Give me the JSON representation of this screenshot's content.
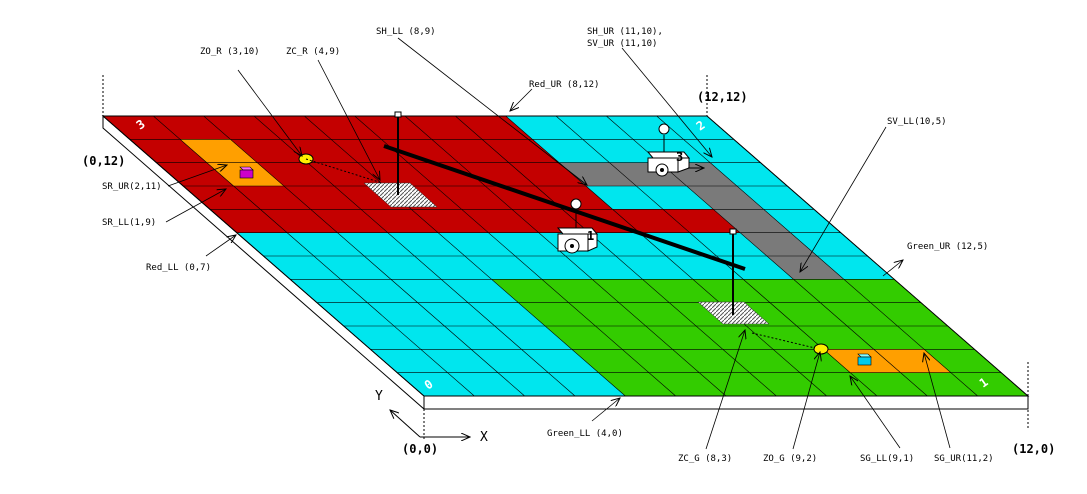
{
  "grid": {
    "cols": 12,
    "rows": 12
  },
  "colors": {
    "red": "#c40000",
    "cyan": "#00e6ee",
    "green": "#33cc00",
    "orange": "#ff9f00",
    "gray": "#7a7a7a",
    "pole": "#000000"
  },
  "zones": [
    {
      "name": "red-zone",
      "color": "red",
      "x0": 0,
      "y0": 7,
      "x1": 8,
      "y1": 12
    },
    {
      "name": "red-zone-tail",
      "color": "red",
      "x0": 8,
      "y0": 7,
      "x1": 11,
      "y1": 8
    },
    {
      "name": "green-zone",
      "color": "green",
      "x0": 4,
      "y0": 0,
      "x1": 12,
      "y1": 5
    },
    {
      "name": "sv-strip",
      "color": "gray",
      "x0": 10,
      "y0": 5,
      "x1": 11,
      "y1": 10
    },
    {
      "name": "sh-strip",
      "color": "gray",
      "x0": 8,
      "y0": 9,
      "x1": 11,
      "y1": 10
    },
    {
      "name": "sr-region",
      "color": "orange",
      "x0": 1,
      "y0": 9,
      "x1": 2,
      "y1": 11
    },
    {
      "name": "sg-region",
      "color": "orange",
      "x0": 9,
      "y0": 1,
      "x1": 11,
      "y1": 2
    }
  ],
  "labels": {
    "origin": "(0,0)",
    "x_axis": "X",
    "y_axis": "Y",
    "corner_0_12": "(0,12)",
    "corner_12_12": "(12,12)",
    "corner_12_0": "(12,0)",
    "zo_r": "ZO_R (3,10)",
    "zc_r": "ZC_R (4,9)",
    "sh_ll": "SH_LL (8,9)",
    "sh_ur": "SH_UR (11,10),",
    "sv_ur": "SV_UR (11,10)",
    "red_ur": "Red_UR (8,12)",
    "sv_ll": "SV_LL(10,5)",
    "sr_ur": "SR_UR(2,11)",
    "sr_ll": "SR_LL(1,9)",
    "red_ll": "Red_LL (0,7)",
    "green_ur": "Green_UR (12,5)",
    "green_ll": "Green_LL (4,0)",
    "zc_g": "ZC_G (8,3)",
    "zo_g": "ZO_G (9,2)",
    "sg_ll": "SG_LL(9,1)",
    "sg_ur": "SG_UR(11,2)",
    "robot_1": "1",
    "robot_3": "3",
    "corner_numeral_tl": "3",
    "corner_numeral_tr": "2",
    "corner_numeral_bl": "0",
    "corner_numeral_br": "1"
  }
}
